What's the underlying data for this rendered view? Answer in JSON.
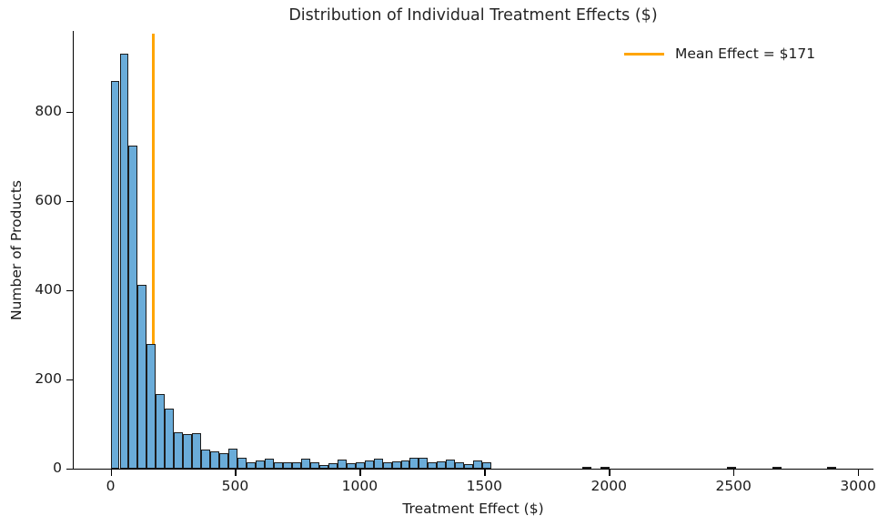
{
  "title": "Distribution of Individual Treatment Effects ($)",
  "legend": {
    "label": "Mean Effect = $171"
  },
  "colors": {
    "bar_fill": "#6aacd9",
    "bar_edge": "#1c1c1c",
    "mean_line": "#ffa500",
    "axis": "#000000",
    "text": "#1a1a1a"
  },
  "chart_data": {
    "type": "bar",
    "subtype": "histogram",
    "title": "Distribution of Individual Treatment Effects ($)",
    "xlabel": "Treatment Effect ($)",
    "ylabel": "Number of Products",
    "legend_position": "upper right",
    "grid": false,
    "xlim": [
      -148,
      3058
    ],
    "ylim": [
      0,
      982
    ],
    "x_ticks": [
      0,
      500,
      1000,
      1500,
      2000,
      2500,
      3000
    ],
    "y_ticks": [
      0,
      200,
      400,
      600,
      800
    ],
    "bin_start": 0,
    "bin_width": 36.4,
    "counts": [
      870,
      930,
      725,
      412,
      280,
      168,
      135,
      82,
      78,
      80,
      42,
      38,
      35,
      44,
      25,
      15,
      19,
      22,
      14,
      14,
      15,
      22,
      14,
      8,
      12,
      21,
      13,
      15,
      18,
      22,
      15,
      17,
      19,
      24,
      24,
      15,
      17,
      20,
      15,
      11,
      18,
      15,
      0,
      0,
      0,
      0,
      0,
      0,
      0,
      0,
      0,
      0,
      2,
      0,
      2,
      0,
      0,
      0,
      0,
      0,
      0,
      0,
      0,
      0,
      0,
      0,
      0,
      0,
      1,
      0,
      0,
      0,
      0,
      2,
      0,
      0,
      0,
      0,
      0,
      2
    ],
    "mean_line": {
      "x": 171,
      "label": "Mean Effect = $171",
      "color": "#ffa500"
    }
  }
}
